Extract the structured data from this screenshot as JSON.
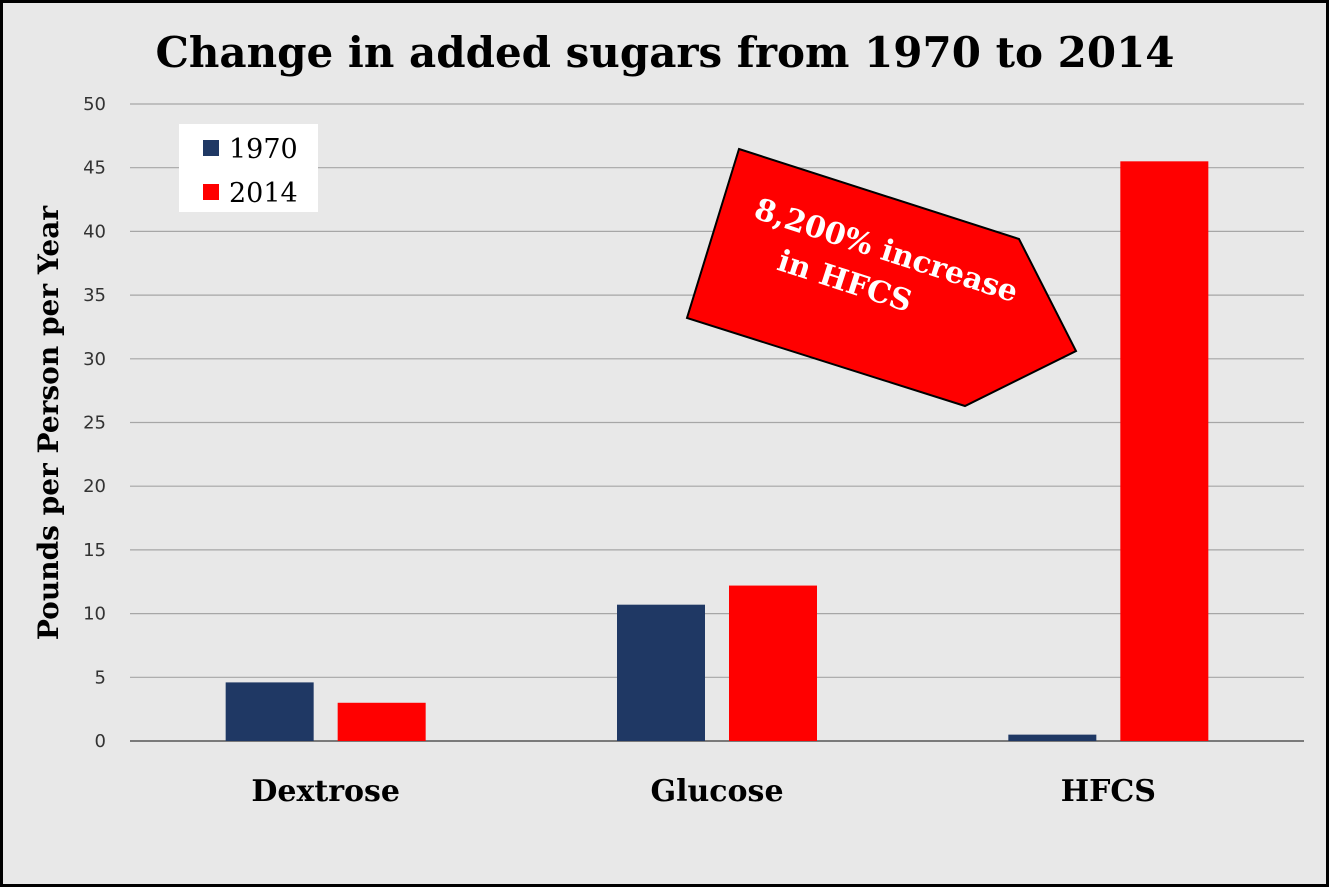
{
  "chart_data": {
    "type": "bar",
    "title": "Change in added sugars from 1970 to 2014",
    "xlabel": "",
    "ylabel": "Pounds per Person per Year",
    "categories": [
      "Dextrose",
      "Glucose",
      "HFCS"
    ],
    "series": [
      {
        "name": "1970",
        "color": "#1f3864",
        "values": [
          4.6,
          10.7,
          0.5
        ]
      },
      {
        "name": "2014",
        "color": "#ff0000",
        "values": [
          3.0,
          12.2,
          45.5
        ]
      }
    ],
    "ylim": [
      0,
      50
    ],
    "yticks": [
      0,
      5,
      10,
      15,
      20,
      25,
      30,
      35,
      40,
      45,
      50
    ],
    "grid": true,
    "legend_position": "top-left",
    "annotation": {
      "line1": "8,200% increase",
      "line2": "in HFCS",
      "color": "#ff0000"
    }
  }
}
